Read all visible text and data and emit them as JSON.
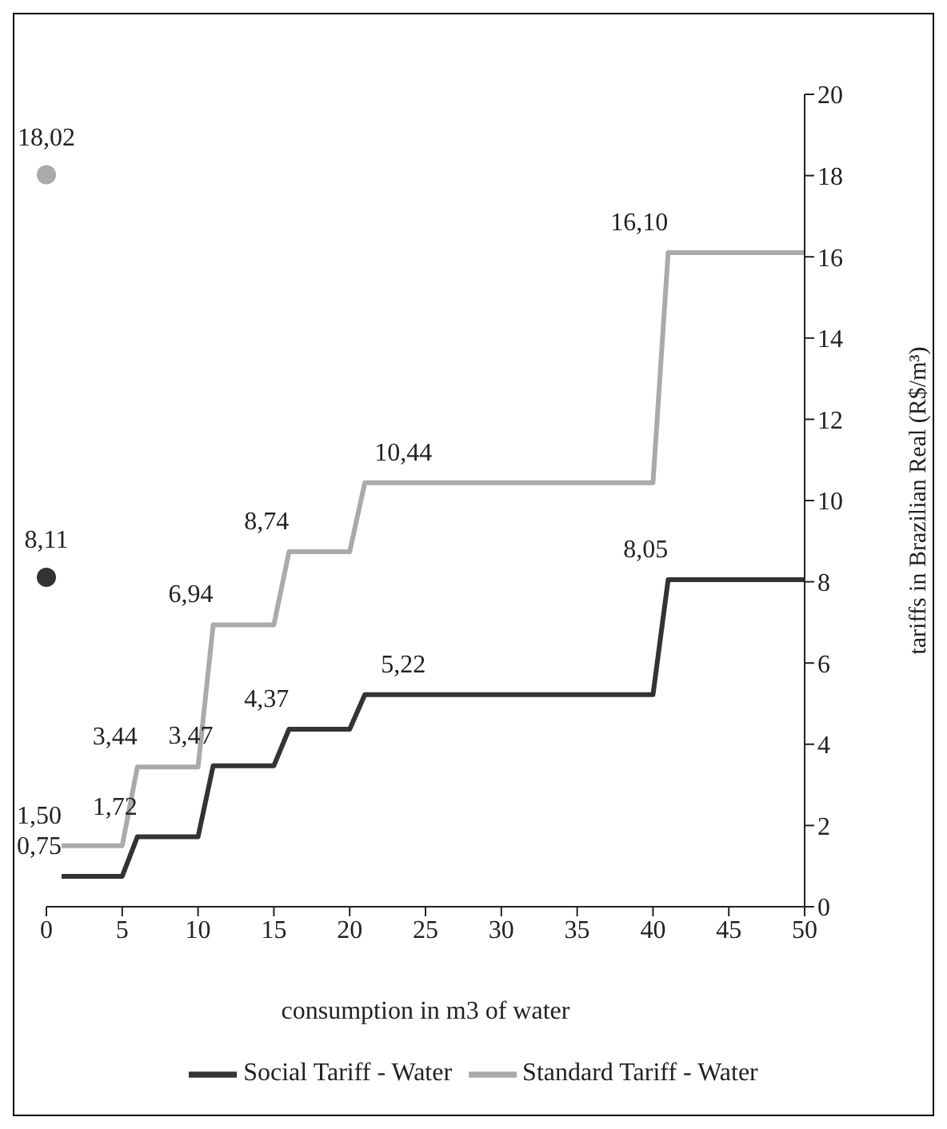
{
  "chart_data": {
    "type": "line",
    "xlabel": "consumption in m3 of water",
    "y2label": "tariffs in Brazilian Real (R$/m³)",
    "xlim": [
      0,
      50
    ],
    "xticks": [
      0,
      5,
      10,
      15,
      20,
      25,
      30,
      35,
      40,
      45,
      50
    ],
    "y2lim": [
      0,
      20
    ],
    "y2ticks": [
      0,
      2,
      4,
      6,
      8,
      10,
      12,
      14,
      16,
      18,
      20
    ],
    "legend": "bottom",
    "marker": "none",
    "line_style": "solid",
    "series": [
      {
        "name": "Social Tariff - Water",
        "color": "#333333",
        "axis": "y2",
        "x": [
          1,
          5,
          6,
          10,
          11,
          15,
          16,
          20,
          21,
          40,
          41,
          50
        ],
        "values": [
          0.75,
          0.75,
          1.72,
          1.72,
          3.47,
          3.47,
          4.37,
          4.37,
          5.22,
          5.22,
          8.05,
          8.05
        ],
        "value_labels": [
          "0,75",
          null,
          "1,72",
          null,
          "3,47",
          null,
          "4,37",
          null,
          "5,22",
          null,
          "8,05",
          null
        ]
      },
      {
        "name": "Standard Tariff - Water",
        "color": "#aaaaaa",
        "axis": "y2",
        "x": [
          1,
          5,
          6,
          10,
          11,
          15,
          16,
          20,
          21,
          40,
          41,
          50
        ],
        "values": [
          1.5,
          1.5,
          3.44,
          3.44,
          6.94,
          6.94,
          8.74,
          8.74,
          10.44,
          10.44,
          16.1,
          16.1
        ],
        "value_labels": [
          "1,50",
          null,
          "3,44",
          null,
          "6,94",
          null,
          "8,74",
          null,
          "10,44",
          null,
          "16,10",
          null
        ]
      },
      {
        "type": "scatter",
        "marker": "circle",
        "color": "#333333",
        "axis": "y2",
        "x": [
          0
        ],
        "values": [
          8.11
        ],
        "value_labels": [
          "8,11"
        ]
      },
      {
        "type": "scatter",
        "marker": "circle",
        "color": "#aaaaaa",
        "axis": "y2",
        "x": [
          0
        ],
        "values": [
          18.02
        ],
        "value_labels": [
          "18,02"
        ]
      }
    ]
  }
}
